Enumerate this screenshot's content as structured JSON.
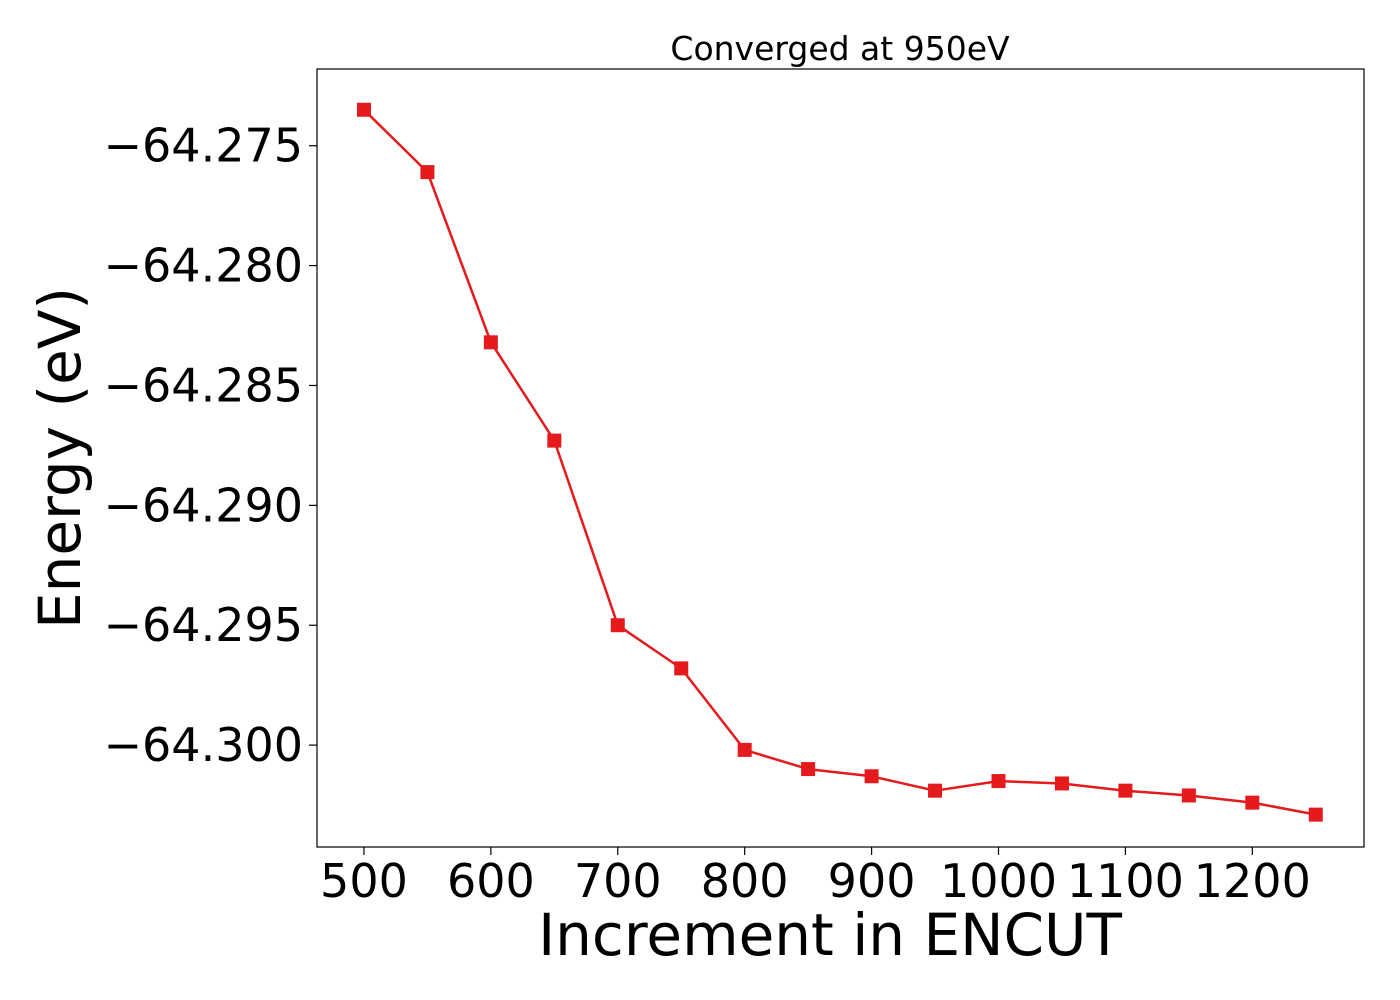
{
  "chart_data": {
    "type": "line",
    "title": "Converged at 950eV",
    "xlabel": "Increment in ENCUT",
    "ylabel": "Energy (eV)",
    "xlim": [
      463,
      1288
    ],
    "ylim": [
      -64.30425,
      -64.2718
    ],
    "x_ticks": [
      500,
      600,
      700,
      800,
      900,
      1000,
      1100,
      1200
    ],
    "x_tick_labels": [
      "500",
      "600",
      "700",
      "800",
      "900",
      "1000",
      "1100",
      "1200"
    ],
    "y_ticks": [
      -64.275,
      -64.28,
      -64.285,
      -64.29,
      -64.295,
      -64.3
    ],
    "y_tick_labels": [
      "−64.275",
      "−64.280",
      "−64.285",
      "−64.290",
      "−64.295",
      "−64.300"
    ],
    "grid": false,
    "series": [
      {
        "color": "#e41a1c",
        "marker": "square",
        "x": [
          500,
          550,
          600,
          650,
          700,
          750,
          800,
          850,
          900,
          950,
          1000,
          1050,
          1100,
          1150,
          1200,
          1250
        ],
        "y": [
          -64.2735,
          -64.2761,
          -64.2832,
          -64.2873,
          -64.295,
          -64.2968,
          -64.3002,
          -64.301,
          -64.3013,
          -64.3019,
          -64.3015,
          -64.3016,
          -64.3019,
          -64.3021,
          -64.3024,
          -64.3029
        ]
      }
    ]
  }
}
